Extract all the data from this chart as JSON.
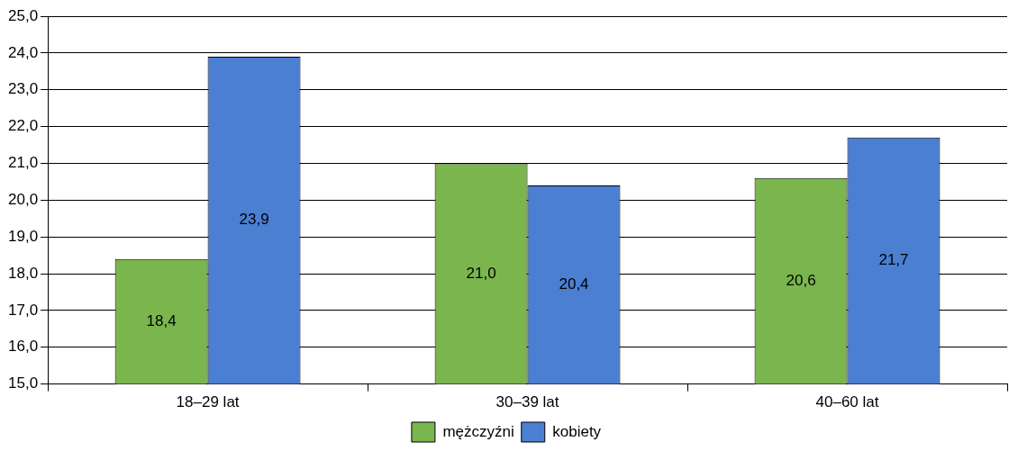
{
  "chart_data": {
    "type": "bar",
    "categories": [
      "18–29 lat",
      "30–39 lat",
      "40–60 lat"
    ],
    "series": [
      {
        "name": "mężczyźni",
        "color": "#7ab54e",
        "values": [
          18.4,
          21.0,
          20.6
        ],
        "value_labels": [
          "18,4",
          "21,0",
          "20,6"
        ]
      },
      {
        "name": "kobiety",
        "color": "#4a7fd2",
        "values": [
          23.9,
          20.4,
          21.7
        ],
        "value_labels": [
          "23,9",
          "20,4",
          "21,7"
        ]
      }
    ],
    "ylim": [
      15,
      25
    ],
    "yticks": [
      {
        "value": 15,
        "label": "15,0"
      },
      {
        "value": 16,
        "label": "16,0"
      },
      {
        "value": 17,
        "label": "17,0"
      },
      {
        "value": 18,
        "label": "18,0"
      },
      {
        "value": 19,
        "label": "19,0"
      },
      {
        "value": 20,
        "label": "20,0"
      },
      {
        "value": 21,
        "label": "21,0"
      },
      {
        "value": 22,
        "label": "22,0"
      },
      {
        "value": 23,
        "label": "23,0"
      },
      {
        "value": 24,
        "label": "24,0"
      },
      {
        "value": 25,
        "label": "25,0"
      }
    ],
    "grid": "y",
    "legend": "bottom"
  }
}
